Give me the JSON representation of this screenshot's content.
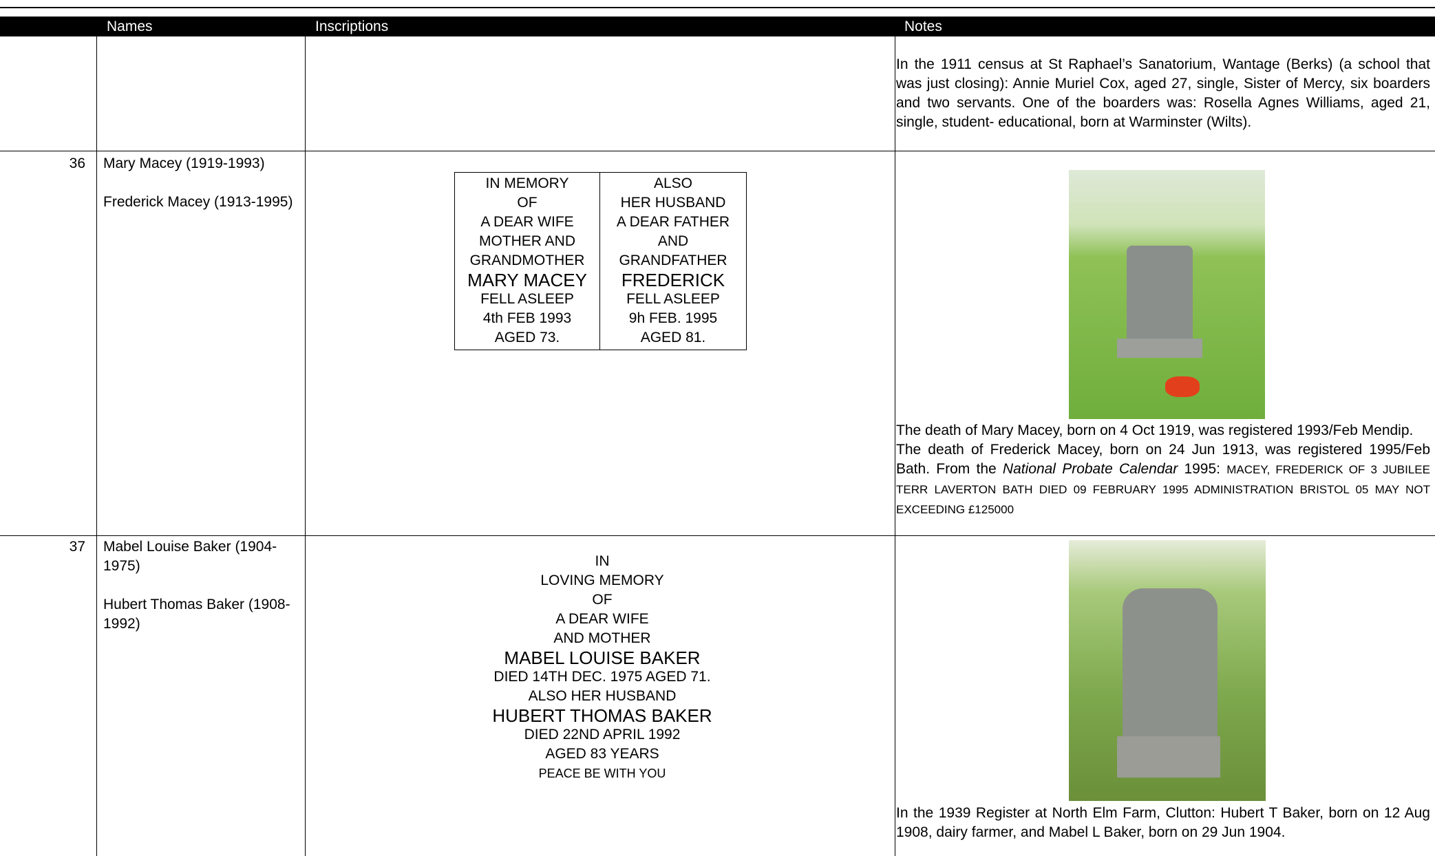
{
  "table": {
    "header": [
      "Names",
      "Inscriptions",
      "Notes"
    ],
    "rows": [
      {
        "notes": [
          "In the 1911 census at St Raphael’s Sanatorium, Wantage (Berks) (a school that was just closing): Annie Muriel Cox, aged 27, single, Sister of Mercy, six boarders and two servants. One of the boarders was: Rosella Agnes Williams, aged 21, single, student- educational, born at Warminster (Wilts)."
        ]
      },
      {
        "number": "36",
        "names": [
          "Mary Macey (1919-1993)",
          "Frederick Macey (1913-1995)"
        ],
        "inscription": {
          "left": [
            "IN MEMORY",
            "OF",
            "A DEAR WIFE",
            "MOTHER AND",
            "GRANDMOTHER",
            "MARY MACEY",
            "FELL ASLEEP",
            "4th FEB 1993",
            "AGED 73."
          ],
          "right": [
            "ALSO",
            "HER HUSBAND",
            "A DEAR FATHER",
            "AND",
            "GRANDFATHER",
            "FREDERICK",
            "FELL ASLEEP",
            "9h FEB. 1995",
            "AGED 81."
          ]
        },
        "notes": [
          "The death of Mary Macey, born on 4 Oct 1919, was registered 1993/Feb Mendip.",
          [
            "The death of Frederick Macey, born on 24 Jun 1913, was registered 1995/Feb Bath. From the ",
            "National Probate Calendar",
            " 1995: ",
            "MACEY, FREDERICK OF 3 JUBILEE TERR LAVERTON BATH DIED 09 FEBRUARY 1995 ADMINISTRATION BRISTOL 05 MAY NOT EXCEEDING £125000"
          ]
        ]
      },
      {
        "number": "37",
        "names": [
          "Mabel Louise Baker (1904-1975)",
          "Hubert Thomas Baker (1908-1992)"
        ],
        "inscription": {
          "lines": [
            "IN",
            "LOVING MEMORY",
            "OF",
            "A DEAR WIFE",
            "AND MOTHER",
            "MABEL LOUISE BAKER",
            "DIED 14TH DEC. 1975 AGED 71.",
            "ALSO HER HUSBAND",
            "HUBERT THOMAS BAKER",
            "DIED 22ND APRIL 1992",
            "AGED 83 YEARS",
            "PEACE BE WITH YOU"
          ]
        },
        "notes": [
          "In the 1939 Register at North Elm Farm, Clutton: Hubert T Baker, born on 12 Aug 1908, dairy farmer, and Mabel L Baker, born on 29 Jun 1904."
        ]
      }
    ]
  }
}
